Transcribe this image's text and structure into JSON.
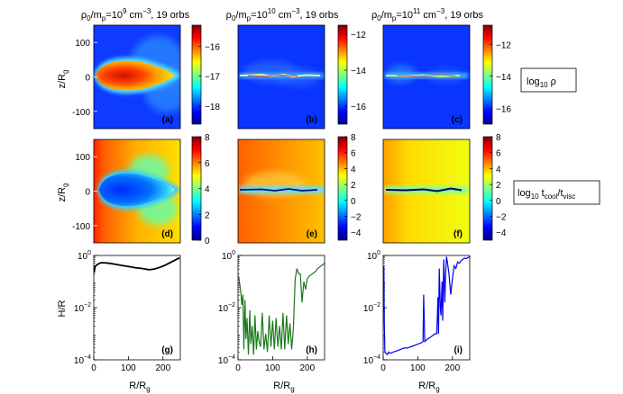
{
  "figure": {
    "column_titles": [
      {
        "rho": "ρ",
        "sub0": "0",
        "slash": "/m",
        "subp": "p",
        "eq": "=10",
        "exp": "9",
        "unit": " cm",
        "uexp": "−3",
        "tail": ", 19 orbs"
      },
      {
        "rho": "ρ",
        "sub0": "0",
        "slash": "/m",
        "subp": "p",
        "eq": "=10",
        "exp": "10",
        "unit": " cm",
        "uexp": "−3",
        "tail": ", 19 orbs"
      },
      {
        "rho": "ρ",
        "sub0": "0",
        "slash": "/m",
        "subp": "p",
        "eq": "=10",
        "exp": "11",
        "unit": " cm",
        "uexp": "−3",
        "tail": ", 19 orbs"
      }
    ],
    "row_labels": {
      "density": {
        "main": "log",
        "sub": "10",
        "tail": " ρ"
      },
      "cooling": {
        "main": "log",
        "sub": "10",
        "mid": " t",
        "sub2": "cool",
        "slash": "/t",
        "sub3": "visc"
      }
    },
    "axis_labels": {
      "zR": {
        "main": "z/R",
        "sub": "g"
      },
      "HR": "H/R",
      "RR": {
        "main": "R/R",
        "sub": "g"
      }
    },
    "colors": {
      "jet": [
        "#00008f",
        "#0000ff",
        "#0080ff",
        "#00ffff",
        "#80ff80",
        "#ffff00",
        "#ff8000",
        "#ff0000",
        "#800000"
      ],
      "green": "#1a7a1a",
      "blue": "#0000ee",
      "black": "#000000"
    }
  },
  "chart_data": [
    {
      "type": "heatmap",
      "panel": "(a)",
      "title": "ρ0/mp=10^9 cm^-3, 19 orbs",
      "ylabel": "z/Rg",
      "yticks": [
        100,
        0,
        -100
      ],
      "ylim": [
        -150,
        150
      ],
      "colorbar": {
        "label": "log10 ρ",
        "ticks": [
          -16,
          -17,
          -18
        ],
        "range": [
          -18.6,
          -15.3
        ]
      }
    },
    {
      "type": "heatmap",
      "panel": "(b)",
      "title": "ρ0/mp=10^10 cm^-3, 19 orbs",
      "colorbar": {
        "ticks": [
          -12,
          -14,
          -16
        ],
        "range": [
          -17,
          -11.5
        ]
      }
    },
    {
      "type": "heatmap",
      "panel": "(c)",
      "title": "ρ0/mp=10^11 cm^-3, 19 orbs",
      "colorbar": {
        "label": "log10 ρ",
        "ticks": [
          -12,
          -14,
          -16
        ],
        "range": [
          -17,
          -10.8
        ]
      }
    },
    {
      "type": "heatmap",
      "panel": "(d)",
      "ylabel": "z/Rg",
      "yticks": [
        100,
        0,
        -100
      ],
      "colorbar": {
        "label": "log10 tcool/tvisc",
        "ticks": [
          8,
          6,
          4,
          2,
          0
        ],
        "range": [
          0,
          8
        ]
      }
    },
    {
      "type": "heatmap",
      "panel": "(e)",
      "colorbar": {
        "ticks": [
          8,
          6,
          4,
          2,
          0,
          -2,
          -4
        ],
        "range": [
          -5,
          8
        ]
      }
    },
    {
      "type": "heatmap",
      "panel": "(f)",
      "colorbar": {
        "label": "log10 tcool/tvisc",
        "ticks": [
          8,
          6,
          4,
          2,
          0,
          -2,
          -4
        ],
        "range": [
          -5,
          8
        ]
      }
    },
    {
      "type": "line",
      "panel": "(g)",
      "ylabel": "H/R",
      "xlabel": "R/Rg",
      "yscale": "log",
      "xticks": [
        0,
        100,
        200
      ],
      "xlim": [
        0,
        250
      ],
      "yticks": [
        "10^0",
        "10^-2",
        "10^-4"
      ],
      "ylim": [
        -4,
        0
      ],
      "series": [
        {
          "name": "10^9",
          "color": "#000000",
          "x": [
            1,
            4,
            10,
            20,
            30,
            45,
            60,
            80,
            100,
            120,
            140,
            160,
            175,
            190,
            205,
            220,
            235,
            248
          ],
          "log10y": [
            -0.65,
            -0.42,
            -0.35,
            -0.28,
            -0.28,
            -0.3,
            -0.33,
            -0.38,
            -0.42,
            -0.47,
            -0.5,
            -0.55,
            -0.52,
            -0.46,
            -0.38,
            -0.28,
            -0.18,
            -0.09
          ]
        }
      ]
    },
    {
      "type": "line",
      "panel": "(h)",
      "xlabel": "R/Rg",
      "yscale": "log",
      "xticks": [
        0,
        100,
        200
      ],
      "xlim": [
        0,
        250
      ],
      "yticks": [
        "10^0",
        "10^-2",
        "10^-4"
      ],
      "ylim": [
        -4,
        0
      ],
      "series": [
        {
          "name": "10^10",
          "color": "#1a7a1a",
          "x": [
            2,
            5,
            8,
            11,
            14,
            17,
            20,
            23,
            26,
            30,
            34,
            37,
            41,
            45,
            49,
            53,
            57,
            61,
            65,
            70,
            75,
            80,
            85,
            90,
            95,
            100,
            105,
            110,
            115,
            120,
            125,
            130,
            135,
            140,
            145,
            150,
            155,
            160,
            165,
            170,
            175,
            180,
            185,
            190,
            195,
            200,
            205,
            210,
            215,
            220,
            225,
            230,
            235,
            240,
            245,
            250
          ],
          "log10y": [
            -0.8,
            -1.1,
            -1.4,
            -1.9,
            -1.5,
            -3.6,
            -1.7,
            -3.2,
            -2.4,
            -3.8,
            -2.1,
            -3.4,
            -2.7,
            -3.8,
            -2.3,
            -3.6,
            -2.9,
            -3.3,
            -3.5,
            -2.2,
            -3.6,
            -3.0,
            -3.7,
            -2.3,
            -3.5,
            -2.5,
            -3.6,
            -2.4,
            -3.5,
            -2.7,
            -3.6,
            -2.2,
            -3.6,
            -2.3,
            -3.4,
            -2.6,
            -3.6,
            -2.8,
            -0.9,
            -0.5,
            -0.7,
            -0.7,
            -1.8,
            -1.0,
            -1.3,
            -0.9,
            -0.8,
            -0.75,
            -0.7,
            -0.65,
            -0.6,
            -0.5,
            -0.45,
            -0.4,
            -0.35,
            -0.3
          ]
        }
      ]
    },
    {
      "type": "line",
      "panel": "(i)",
      "xlabel": "R/Rg",
      "yscale": "log",
      "xticks": [
        0,
        100,
        200
      ],
      "xlim": [
        0,
        250
      ],
      "yticks": [
        "10^0",
        "10^-2",
        "10^-4"
      ],
      "ylim": [
        -4,
        0
      ],
      "series": [
        {
          "name": "10^11",
          "color": "#0000ee",
          "x": [
            2,
            3,
            5,
            8,
            12,
            16,
            20,
            30,
            40,
            50,
            60,
            70,
            80,
            90,
            100,
            110,
            115,
            117,
            120,
            124,
            128,
            135,
            140,
            145,
            150,
            155,
            158,
            160,
            162,
            165,
            167,
            170,
            172,
            175,
            178,
            180,
            183,
            186,
            190,
            195,
            200,
            205,
            210,
            215,
            220,
            225,
            230,
            235,
            240,
            245,
            250
          ],
          "log10y": [
            -0.4,
            -2.5,
            -3.7,
            -3.75,
            -3.8,
            -3.7,
            -3.75,
            -3.7,
            -3.65,
            -3.6,
            -3.55,
            -3.55,
            -3.5,
            -3.45,
            -3.4,
            -3.35,
            -3.3,
            -1.5,
            -3.3,
            -3.25,
            -3.2,
            -3.15,
            -3.1,
            -3.05,
            -3.0,
            -3.0,
            -1.6,
            -3.0,
            -0.5,
            -2.0,
            -2.3,
            -1.0,
            -2.5,
            -0.15,
            -1.8,
            -0.8,
            -0.05,
            -0.3,
            -0.7,
            -1.5,
            -0.9,
            -0.4,
            -0.5,
            -0.25,
            -0.3,
            -0.2,
            -0.15,
            -0.1,
            -0.12,
            -0.08,
            -0.05
          ]
        }
      ]
    }
  ]
}
